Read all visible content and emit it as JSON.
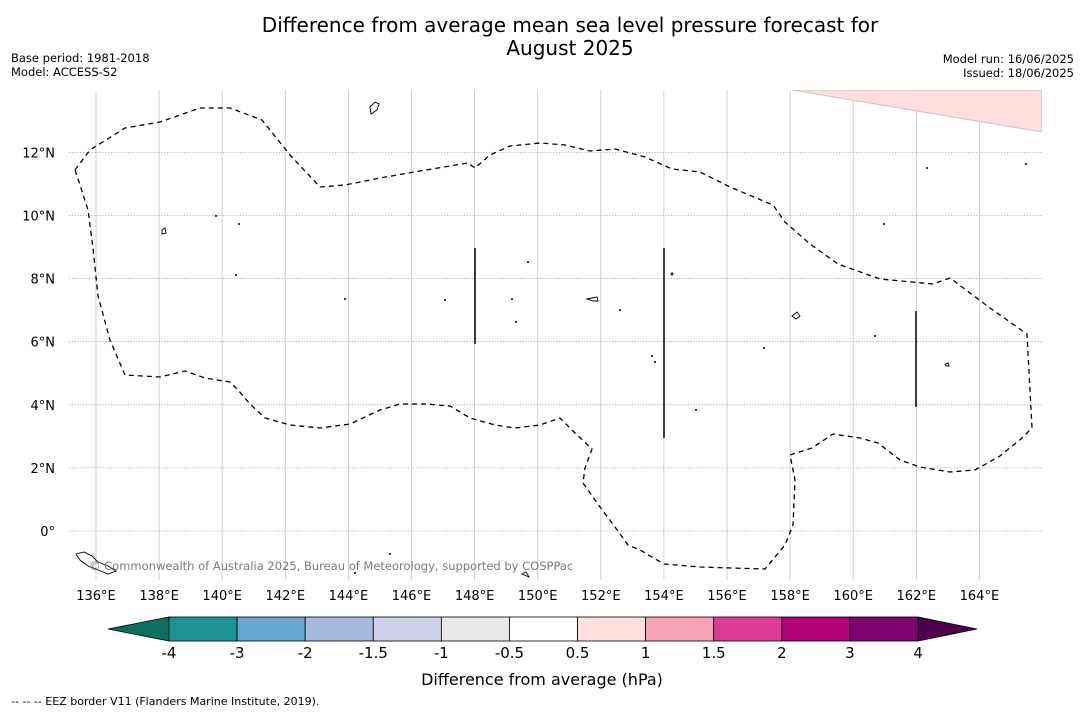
{
  "title_line1": "Difference from average mean sea level pressure forecast for",
  "title_line2": "August 2025",
  "base_period": "Base period: 1981-2018",
  "model": "Model: ACCESS-S2",
  "model_run": "Model run: 16/06/2025",
  "issued": "Issued: 18/06/2025",
  "copyright": "© Commonwealth of Australia 2025, Bureau of Meteorology, supported by COSPPac",
  "footer_note": "--  --  -- EEZ border V11 (Flanders Marine Institute, 2019).",
  "map": {
    "lon_ticks": [
      "136°E",
      "138°E",
      "140°E",
      "142°E",
      "144°E",
      "146°E",
      "148°E",
      "150°E",
      "152°E",
      "154°E",
      "156°E",
      "158°E",
      "160°E",
      "162°E",
      "164°E"
    ],
    "lat_ticks": [
      "12°N",
      "10°N",
      "8°N",
      "6°N",
      "4°N",
      "2°N",
      "0°"
    ],
    "lon_values": [
      136,
      138,
      140,
      142,
      144,
      146,
      148,
      150,
      152,
      154,
      156,
      158,
      160,
      162,
      164
    ],
    "lat_values": [
      12,
      10,
      8,
      6,
      4,
      2,
      0
    ]
  },
  "legend": {
    "title": "Difference from average (hPa)",
    "labels": [
      "-4",
      "-3",
      "-2",
      "-1.5",
      "-1",
      "-0.5",
      "0.5",
      "1",
      "1.5",
      "2",
      "3",
      "4"
    ],
    "colors": [
      "#0b7060",
      "#1f9298",
      "#66a8d0",
      "#a4b9dc",
      "#cdd0e8",
      "#e8e8e8",
      "#ffffff",
      "#ffdede",
      "#f7a3b6",
      "#dd3c94",
      "#b30278",
      "#7e0472",
      "#4d004b"
    ]
  }
}
